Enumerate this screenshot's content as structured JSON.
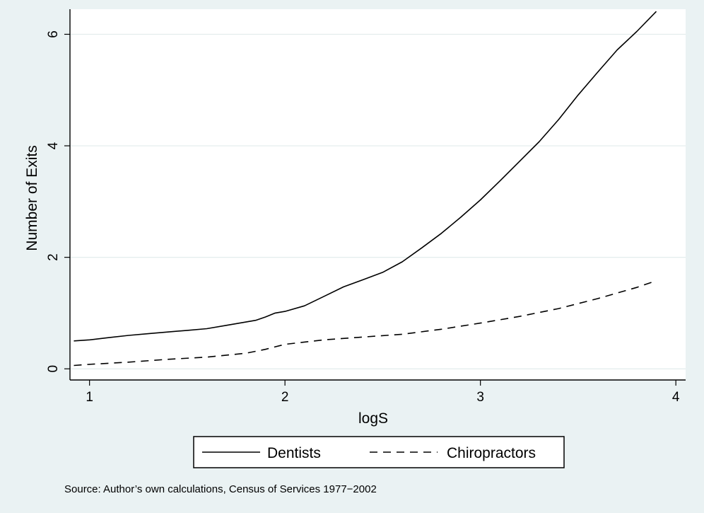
{
  "chart_data": {
    "type": "line",
    "title": "",
    "xlabel": "logS",
    "ylabel": "Number of Exits",
    "xlim": [
      0.9,
      4.05
    ],
    "ylim": [
      -0.2,
      6.45
    ],
    "xticks": [
      1,
      2,
      3,
      4
    ],
    "yticks": [
      0,
      2,
      4,
      6
    ],
    "grid": "horizontal",
    "legend": "bottom",
    "note": "Source: Author’s own calculations, Census of Services 1977−2002",
    "series": [
      {
        "name": "Dentists",
        "style": "solid",
        "x": [
          0.92,
          1.0,
          1.1,
          1.2,
          1.3,
          1.4,
          1.5,
          1.6,
          1.7,
          1.8,
          1.85,
          1.9,
          1.95,
          2.0,
          2.1,
          2.2,
          2.3,
          2.4,
          2.5,
          2.6,
          2.7,
          2.8,
          2.9,
          3.0,
          3.1,
          3.2,
          3.3,
          3.4,
          3.5,
          3.6,
          3.7,
          3.8,
          3.9
        ],
        "y": [
          0.5,
          0.52,
          0.56,
          0.6,
          0.63,
          0.66,
          0.69,
          0.72,
          0.78,
          0.84,
          0.87,
          0.93,
          1.0,
          1.03,
          1.13,
          1.3,
          1.47,
          1.6,
          1.73,
          1.92,
          2.17,
          2.43,
          2.72,
          3.03,
          3.37,
          3.72,
          4.07,
          4.47,
          4.91,
          5.32,
          5.72,
          6.05,
          6.41
        ]
      },
      {
        "name": "Chiropractors",
        "style": "dashed",
        "x": [
          0.92,
          1.0,
          1.2,
          1.4,
          1.6,
          1.8,
          1.9,
          2.0,
          2.2,
          2.4,
          2.6,
          2.8,
          3.0,
          3.2,
          3.4,
          3.6,
          3.8,
          3.9
        ],
        "y": [
          0.06,
          0.08,
          0.12,
          0.17,
          0.21,
          0.28,
          0.35,
          0.44,
          0.52,
          0.57,
          0.62,
          0.71,
          0.82,
          0.94,
          1.08,
          1.26,
          1.46,
          1.58
        ]
      }
    ]
  }
}
